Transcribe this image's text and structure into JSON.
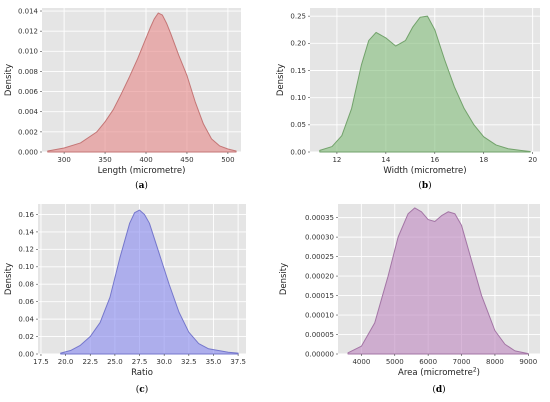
{
  "chart_data": [
    {
      "type": "area",
      "panel": "a",
      "panel_label": "a",
      "xlabel": "Length (micrometre)",
      "ylabel": "Density",
      "xlim": [
        273,
        516
      ],
      "ylim": [
        0,
        0.0143
      ],
      "xticks": [
        300,
        350,
        400,
        450,
        500
      ],
      "yticks": [
        0.0,
        0.002,
        0.004,
        0.006,
        0.008,
        0.01,
        0.012,
        0.014
      ],
      "ytick_labels": [
        "0.000",
        "0.002",
        "0.004",
        "0.006",
        "0.008",
        "0.010",
        "0.012",
        "0.014"
      ],
      "color": "#e68b8b",
      "grid": true,
      "x": [
        280,
        300,
        320,
        340,
        350,
        360,
        370,
        380,
        390,
        400,
        405,
        410,
        415,
        420,
        425,
        430,
        440,
        450,
        460,
        470,
        480,
        490,
        500,
        510
      ],
      "y": [
        0.0001,
        0.0004,
        0.0009,
        0.002,
        0.003,
        0.0042,
        0.0058,
        0.0075,
        0.0093,
        0.0113,
        0.0123,
        0.0132,
        0.0138,
        0.0136,
        0.0128,
        0.0118,
        0.0096,
        0.0076,
        0.005,
        0.0028,
        0.0013,
        0.0006,
        0.0003,
        0.0001
      ]
    },
    {
      "type": "area",
      "panel": "b",
      "panel_label": "b",
      "xlabel": "Width (micrometre)",
      "ylabel": "Density",
      "xlim": [
        10.9,
        20.3
      ],
      "ylim": [
        0,
        0.265
      ],
      "xticks": [
        12,
        14,
        16,
        18,
        20
      ],
      "yticks": [
        0.0,
        0.05,
        0.1,
        0.15,
        0.2,
        0.25
      ],
      "ytick_labels": [
        "0.00",
        "0.05",
        "0.10",
        "0.15",
        "0.20",
        "0.25"
      ],
      "color": "#86bf7e",
      "grid": true,
      "x": [
        11.3,
        11.8,
        12.2,
        12.6,
        13.0,
        13.3,
        13.6,
        14.0,
        14.4,
        14.8,
        15.1,
        15.4,
        15.7,
        16.0,
        16.4,
        16.8,
        17.2,
        17.6,
        18.0,
        18.5,
        19.0,
        19.5,
        19.9
      ],
      "y": [
        0.003,
        0.01,
        0.03,
        0.08,
        0.16,
        0.205,
        0.22,
        0.21,
        0.195,
        0.205,
        0.23,
        0.248,
        0.25,
        0.225,
        0.17,
        0.12,
        0.08,
        0.05,
        0.028,
        0.013,
        0.006,
        0.003,
        0.001
      ]
    },
    {
      "type": "area",
      "panel": "c",
      "panel_label": "c",
      "xlabel": "Ratio",
      "ylabel": "Density",
      "xlim": [
        17.2,
        38.3
      ],
      "ylim": [
        0,
        0.172
      ],
      "xticks": [
        17.5,
        20.0,
        22.5,
        25.0,
        27.5,
        30.0,
        32.5,
        35.0,
        37.5
      ],
      "xtick_labels": [
        "17.5",
        "20.0",
        "22.5",
        "25.0",
        "27.5",
        "30.0",
        "32.5",
        "35.0",
        "37.5"
      ],
      "yticks": [
        0.0,
        0.02,
        0.04,
        0.06,
        0.08,
        0.1,
        0.12,
        0.14,
        0.16
      ],
      "ytick_labels": [
        "0.00",
        "0.02",
        "0.04",
        "0.06",
        "0.08",
        "0.10",
        "0.12",
        "0.14",
        "0.16"
      ],
      "color": "#8a8cf0",
      "grid": true,
      "x": [
        19.5,
        20.5,
        21.5,
        22.5,
        23.5,
        24.5,
        25.5,
        26.5,
        27.0,
        27.5,
        28.0,
        28.5,
        29.5,
        30.5,
        31.5,
        32.5,
        33.5,
        34.5,
        35.5,
        36.5,
        37.5
      ],
      "y": [
        0.001,
        0.004,
        0.01,
        0.02,
        0.036,
        0.065,
        0.11,
        0.15,
        0.162,
        0.165,
        0.16,
        0.15,
        0.115,
        0.08,
        0.048,
        0.025,
        0.012,
        0.006,
        0.004,
        0.002,
        0.001
      ]
    },
    {
      "type": "area",
      "panel": "d",
      "panel_label": "d",
      "xlabel": "Area (micrometre",
      "xlabel_superscript": "2",
      "xlabel_suffix": ")",
      "ylabel": "Density",
      "xlim": [
        3300,
        9350
      ],
      "ylim": [
        0,
        0.000385
      ],
      "xticks": [
        4000,
        5000,
        6000,
        7000,
        8000,
        9000
      ],
      "yticks": [
        0.0,
        5e-05,
        0.0001,
        0.00015,
        0.0002,
        0.00025,
        0.0003,
        0.00035
      ],
      "ytick_labels": [
        "0.00000",
        "0.00005",
        "0.00010",
        "0.00015",
        "0.00020",
        "0.00025",
        "0.00030",
        "0.00035"
      ],
      "color": "#c08ac2",
      "grid": true,
      "x": [
        3600,
        4000,
        4400,
        4800,
        5100,
        5400,
        5600,
        5800,
        6000,
        6200,
        6400,
        6600,
        6800,
        7000,
        7300,
        7600,
        8000,
        8300,
        8600,
        9000
      ],
      "y": [
        3e-06,
        2e-05,
        8e-05,
        0.0002,
        0.0003,
        0.00036,
        0.000375,
        0.000365,
        0.000345,
        0.00034,
        0.000355,
        0.000365,
        0.00036,
        0.00033,
        0.00024,
        0.00015,
        6e-05,
        2.5e-05,
        8e-06,
        1e-06
      ]
    }
  ]
}
